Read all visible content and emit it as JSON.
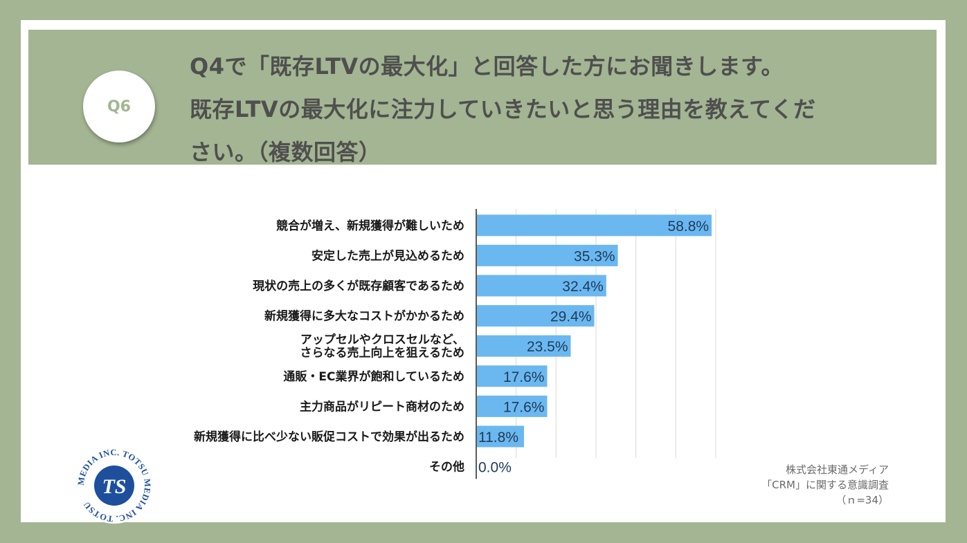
{
  "header": {
    "badge": "Q6",
    "question_lines": [
      "Q4で「既存LTVの最大化」と回答した方にお聞きします。",
      "既存LTVの最大化に注力していきたいと思う理由を教えてくだ",
      "さい。（複数回答）"
    ]
  },
  "chart_data": {
    "type": "bar",
    "orientation": "horizontal",
    "categories": [
      [
        "競合が増え、新規獲得が難しいため"
      ],
      [
        "安定した売上が見込めるため"
      ],
      [
        "現状の売上の多くが既存顧客であるため"
      ],
      [
        "新規獲得に多大なコストがかかるため"
      ],
      [
        "アップセルやクロスセルなど、",
        "さらなる売上向上を狙えるため"
      ],
      [
        "通販・EC業界が飽和しているため"
      ],
      [
        "主力商品がリピート商材のため"
      ],
      [
        "新規獲得に比べ少ない販促コストで効果が出るため"
      ],
      [
        "その他"
      ]
    ],
    "values": [
      58.8,
      35.3,
      32.4,
      29.4,
      23.5,
      17.6,
      17.6,
      11.8,
      0.0
    ],
    "value_labels": [
      "58.8%",
      "35.3%",
      "32.4%",
      "29.4%",
      "23.5%",
      "17.6%",
      "17.6%",
      "11.8%",
      "0.0%"
    ],
    "xlim": [
      0,
      60
    ],
    "grid": true,
    "bar_color": "#6bb8f0"
  },
  "source": {
    "line1": "株式会社東通メディア",
    "line2": "「CRM」に関する意識調査",
    "line3": "（ｎ=34）"
  },
  "logo": {
    "ring_text": "MEDIA INC. TOTSU MEDIA INC. TOTSU",
    "mark": "TS"
  },
  "colors": {
    "frame": "#a3b592",
    "bar": "#6bb8f0",
    "logo_blue": "#1d4f9c"
  }
}
